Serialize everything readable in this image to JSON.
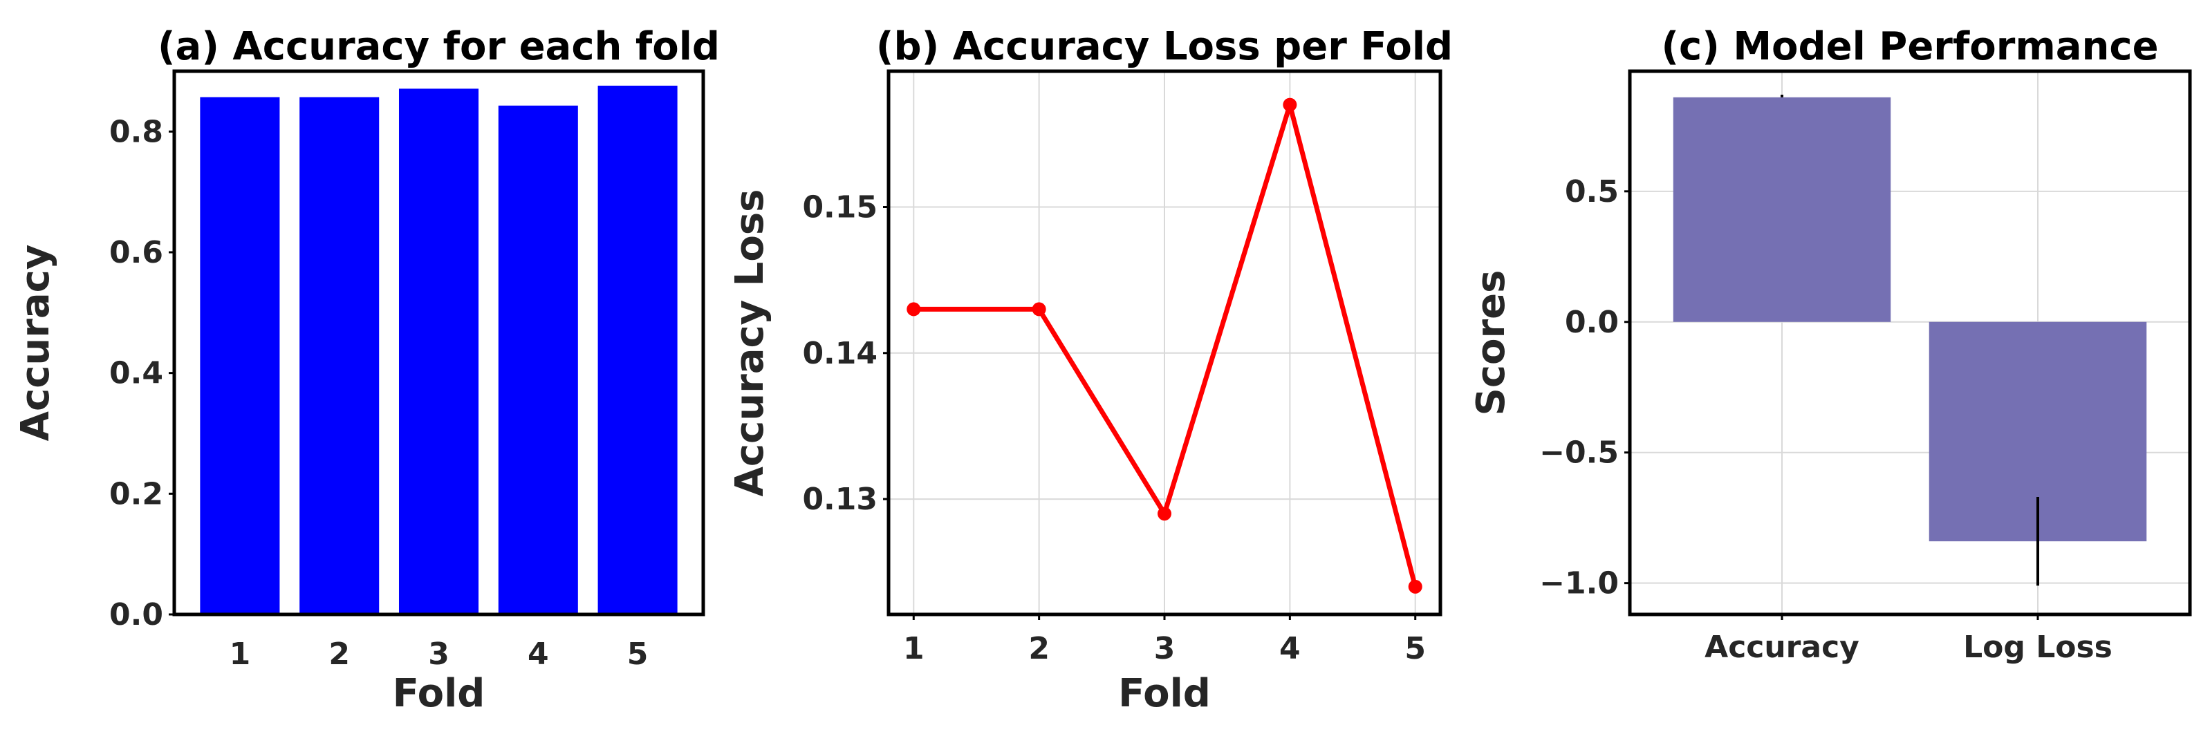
{
  "colors": {
    "bar_a": "#0000ff",
    "line_b": "#ff0000",
    "bar_c": "#7570b3",
    "grid": "#d9d9d9",
    "axis": "#000000",
    "errorbar": "#000000"
  },
  "chart_data": [
    {
      "type": "bar",
      "title": "(a) Accuracy for each fold",
      "xlabel": "Fold",
      "ylabel": "Accuracy",
      "categories": [
        "1",
        "2",
        "3",
        "4",
        "5"
      ],
      "values": [
        0.857,
        0.857,
        0.871,
        0.843,
        0.876
      ],
      "ylim": [
        0,
        0.9
      ],
      "yticks": [
        0.0,
        0.2,
        0.4,
        0.6,
        0.8
      ],
      "ytick_labels": [
        "0.0",
        "0.2",
        "0.4",
        "0.6",
        "0.8"
      ],
      "grid": false
    },
    {
      "type": "line",
      "title": "(b) Accuracy Loss per Fold",
      "xlabel": "Fold",
      "ylabel": "Accuracy Loss",
      "x": [
        1,
        2,
        3,
        4,
        5
      ],
      "y": [
        0.143,
        0.143,
        0.129,
        0.157,
        0.124
      ],
      "xlim": [
        0.8,
        5.2
      ],
      "ylim": [
        0.1221,
        0.1593
      ],
      "xticks": [
        1,
        2,
        3,
        4,
        5
      ],
      "xtick_labels": [
        "1",
        "2",
        "3",
        "4",
        "5"
      ],
      "yticks": [
        0.13,
        0.14,
        0.15
      ],
      "ytick_labels": [
        "0.13",
        "0.14",
        "0.15"
      ],
      "marker": "circle",
      "grid": true
    },
    {
      "type": "bar",
      "title": "(c) Model Performance",
      "xlabel": "",
      "ylabel": "Scores",
      "categories": [
        "Accuracy",
        "Log Loss"
      ],
      "values": [
        0.86,
        -0.84
      ],
      "error_low": [
        0.86,
        -1.01
      ],
      "error_high": [
        0.87,
        -0.67
      ],
      "ylim": [
        -1.12,
        0.96
      ],
      "yticks": [
        -1.0,
        -0.5,
        0.0,
        0.5
      ],
      "ytick_labels": [
        "−1.0",
        "−0.5",
        "0.0",
        "0.5"
      ],
      "grid": true
    }
  ]
}
